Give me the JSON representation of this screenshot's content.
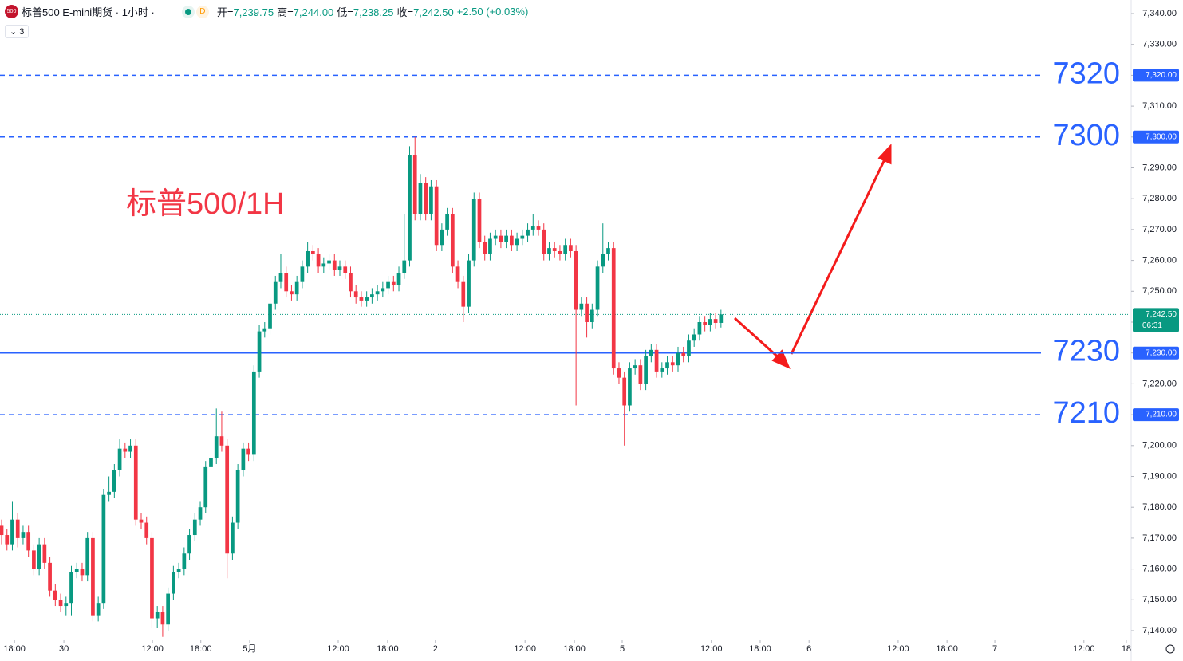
{
  "header": {
    "symbol_icon": "500",
    "title": "标普500 E-mini期货 · 1小时 ·",
    "badge": "D",
    "legend": [
      {
        "label": "开=",
        "value": "7,239.75"
      },
      {
        "label": "高=",
        "value": "7,244.00"
      },
      {
        "label": "低=",
        "value": "7,238.25"
      },
      {
        "label": "收=",
        "value": "7,242.50"
      }
    ],
    "change": "+2.50 (+0.03%)",
    "indicator_count": "3"
  },
  "chart_data": {
    "type": "candlestick",
    "annotation": "标普500/1H",
    "up_color": "#089981",
    "down_color": "#f23645",
    "xlim": [
      -0.3,
      210.4
    ],
    "ylim": [
      7140,
      7340
    ],
    "xticks": [
      {
        "value": 2.4,
        "label": "18:00"
      },
      {
        "value": 11.6,
        "label": "30"
      },
      {
        "value": 28.1,
        "label": "12:00"
      },
      {
        "value": 37.1,
        "label": "18:00"
      },
      {
        "value": 46.2,
        "label": "5月"
      },
      {
        "value": 62.7,
        "label": "12:00"
      },
      {
        "value": 71.9,
        "label": "18:00"
      },
      {
        "value": 80.8,
        "label": "2"
      },
      {
        "value": 97.5,
        "label": "12:00"
      },
      {
        "value": 106.7,
        "label": "18:00"
      },
      {
        "value": 115.6,
        "label": "5"
      },
      {
        "value": 132.2,
        "label": "12:00"
      },
      {
        "value": 141.3,
        "label": "18:00"
      },
      {
        "value": 150.4,
        "label": "6"
      },
      {
        "value": 167,
        "label": "12:00"
      },
      {
        "value": 176.1,
        "label": "18:00"
      },
      {
        "value": 185,
        "label": "7"
      },
      {
        "value": 201.6,
        "label": "12:00"
      },
      {
        "value": 209.5,
        "label": "18"
      }
    ],
    "yticks": [
      {
        "value": 7340,
        "label": "7,340.00"
      },
      {
        "value": 7330,
        "label": "7,330.00"
      },
      {
        "value": 7320,
        "label": "7,320.00"
      },
      {
        "value": 7310,
        "label": "7,310.00"
      },
      {
        "value": 7300,
        "label": "7,300.00"
      },
      {
        "value": 7290,
        "label": "7,290.00"
      },
      {
        "value": 7280,
        "label": "7,280.00"
      },
      {
        "value": 7270,
        "label": "7,270.00"
      },
      {
        "value": 7260,
        "label": "7,260.00"
      },
      {
        "value": 7250,
        "label": "7,250.00"
      },
      {
        "value": 7240,
        "label": "7,240.00"
      },
      {
        "value": 7230,
        "label": "7,230.00"
      },
      {
        "value": 7220,
        "label": "7,220.00"
      },
      {
        "value": 7210,
        "label": "7,210.00"
      },
      {
        "value": 7200,
        "label": "7,200.00"
      },
      {
        "value": 7190,
        "label": "7,190.00"
      },
      {
        "value": 7180,
        "label": "7,180.00"
      },
      {
        "value": 7170,
        "label": "7,170.00"
      },
      {
        "value": 7160,
        "label": "7,160.00"
      },
      {
        "value": 7150,
        "label": "7,150.00"
      },
      {
        "value": 7140,
        "label": "7,140.00"
      }
    ],
    "levels": [
      {
        "value": 7320,
        "axis_label": "7,320.00",
        "style": "dashed",
        "color": "#2962ff"
      },
      {
        "value": 7300,
        "axis_label": "7,300.00",
        "style": "dashed",
        "color": "#2962ff"
      },
      {
        "value": 7230,
        "axis_label": "7,230.00",
        "style": "solid",
        "color": "#2962ff"
      },
      {
        "value": 7210,
        "axis_label": "7,210.00",
        "style": "dashed",
        "color": "#2962ff"
      }
    ],
    "last_price": {
      "value": 7242.5,
      "label": "7,242.50",
      "countdown": "06:31",
      "color": "#089981"
    },
    "open": [
      7174,
      7171,
      7168,
      7176,
      7170,
      7172,
      7166,
      7160,
      7168,
      7162,
      7153,
      7150,
      7148,
      7149,
      7159,
      7160,
      7158,
      7170,
      7145,
      7149,
      7184,
      7185,
      7192,
      7199,
      7198,
      7200,
      7176,
      7175,
      7170,
      7144,
      7146,
      7142,
      7152,
      7159,
      7160,
      7165,
      7171,
      7176,
      7180,
      7193,
      7196,
      7203,
      7200,
      7165,
      7175,
      7192,
      7199,
      7197,
      7224,
      7237,
      7238,
      7246,
      7253,
      7256,
      7250,
      7249,
      7253,
      7258,
      7263,
      7262,
      7258,
      7259,
      7260,
      7257,
      7258,
      7256,
      7250,
      7248,
      7247,
      7248,
      7249,
      7250,
      7251,
      7253,
      7252,
      7256,
      7260,
      7294,
      7275,
      7285,
      7275,
      7284,
      7265,
      7270,
      7275,
      7258,
      7253,
      7245,
      7260,
      7280,
      7266,
      7262,
      7267,
      7268,
      7266,
      7268,
      7265,
      7267,
      7268,
      7270,
      7271,
      7270,
      7262,
      7264,
      7263,
      7262,
      7265,
      7263,
      7244,
      7246,
      7240,
      7244,
      7258,
      7262,
      7264,
      7225,
      7222,
      7213,
      7225,
      7226,
      7220,
      7229,
      7231,
      7224,
      7225,
      7227,
      7226,
      7230,
      7229,
      7234,
      7236,
      7240,
      7239,
      7241,
      7239.75
    ],
    "high": [
      7176,
      7173,
      7182,
      7178,
      7174,
      7174,
      7168,
      7170,
      7170,
      7164,
      7155,
      7152,
      7151,
      7161,
      7162,
      7162,
      7172,
      7172,
      7151,
      7186,
      7190,
      7194,
      7202,
      7201,
      7202,
      7202,
      7178,
      7177,
      7172,
      7148,
      7148,
      7154,
      7161,
      7162,
      7167,
      7173,
      7178,
      7182,
      7195,
      7198,
      7212,
      7211,
      7202,
      7177,
      7194,
      7201,
      7201,
      7226,
      7239,
      7240,
      7248,
      7255,
      7262,
      7258,
      7252,
      7255,
      7260,
      7266,
      7265,
      7264,
      7261,
      7262,
      7262,
      7260,
      7260,
      7258,
      7252,
      7250,
      7250,
      7251,
      7252,
      7253,
      7255,
      7255,
      7258,
      7275,
      7297,
      7300,
      7288,
      7287,
      7286,
      7286,
      7272,
      7277,
      7277,
      7260,
      7255,
      7262,
      7282,
      7282,
      7268,
      7269,
      7270,
      7270,
      7270,
      7270,
      7269,
      7270,
      7272,
      7275,
      7273,
      7272,
      7266,
      7266,
      7265,
      7267,
      7267,
      7265,
      7248,
      7248,
      7246,
      7260,
      7272,
      7266,
      7266,
      7227,
      7224,
      7227,
      7228,
      7228,
      7231,
      7233,
      7233,
      7227,
      7229,
      7229,
      7232,
      7232,
      7236,
      7238,
      7242,
      7242,
      7243,
      7243,
      7244
    ],
    "low": [
      7168,
      7166,
      7166,
      7167,
      7168,
      7164,
      7158,
      7158,
      7160,
      7151,
      7148,
      7146,
      7145,
      7145,
      7157,
      7156,
      7156,
      7143,
      7143,
      7147,
      7182,
      7183,
      7190,
      7196,
      7196,
      7174,
      7173,
      7168,
      7141,
      7141,
      7138,
      7140,
      7150,
      7157,
      7158,
      7163,
      7169,
      7174,
      7178,
      7191,
      7194,
      7198,
      7157,
      7163,
      7173,
      7190,
      7195,
      7195,
      7222,
      7235,
      7236,
      7244,
      7251,
      7248,
      7247,
      7247,
      7251,
      7256,
      7260,
      7256,
      7256,
      7257,
      7255,
      7255,
      7254,
      7248,
      7246,
      7245,
      7245,
      7246,
      7247,
      7248,
      7249,
      7250,
      7250,
      7254,
      7258,
      7273,
      7273,
      7273,
      7273,
      7263,
      7263,
      7268,
      7256,
      7251,
      7240,
      7243,
      7258,
      7264,
      7260,
      7260,
      7265,
      7264,
      7264,
      7263,
      7263,
      7265,
      7266,
      7268,
      7268,
      7260,
      7260,
      7261,
      7260,
      7260,
      7261,
      7213,
      7242,
      7235,
      7238,
      7242,
      7256,
      7260,
      7223,
      7220,
      7200,
      7211,
      7223,
      7218,
      7218,
      7227,
      7222,
      7222,
      7223,
      7224,
      7224,
      7227,
      7227,
      7232,
      7234,
      7237,
      7237,
      7238,
      7238.25
    ],
    "close": [
      7171,
      7168,
      7176,
      7170,
      7172,
      7166,
      7160,
      7168,
      7162,
      7153,
      7150,
      7148,
      7149,
      7159,
      7160,
      7158,
      7170,
      7145,
      7149,
      7184,
      7185,
      7192,
      7199,
      7198,
      7200,
      7176,
      7175,
      7170,
      7144,
      7146,
      7142,
      7152,
      7159,
      7160,
      7165,
      7171,
      7176,
      7180,
      7193,
      7196,
      7203,
      7200,
      7165,
      7175,
      7192,
      7199,
      7197,
      7224,
      7237,
      7238,
      7246,
      7253,
      7256,
      7250,
      7249,
      7253,
      7258,
      7263,
      7262,
      7258,
      7259,
      7260,
      7257,
      7258,
      7256,
      7250,
      7248,
      7247,
      7248,
      7249,
      7250,
      7251,
      7253,
      7252,
      7256,
      7260,
      7294,
      7275,
      7285,
      7275,
      7284,
      7265,
      7270,
      7275,
      7258,
      7253,
      7245,
      7260,
      7280,
      7266,
      7262,
      7267,
      7268,
      7266,
      7268,
      7265,
      7267,
      7268,
      7270,
      7271,
      7270,
      7262,
      7264,
      7263,
      7262,
      7265,
      7263,
      7244,
      7246,
      7240,
      7244,
      7258,
      7262,
      7264,
      7225,
      7222,
      7213,
      7225,
      7226,
      7220,
      7229,
      7231,
      7224,
      7225,
      7227,
      7226,
      7230,
      7229,
      7234,
      7236,
      7240,
      7239,
      7241,
      7239.75,
      7242.5
    ]
  }
}
